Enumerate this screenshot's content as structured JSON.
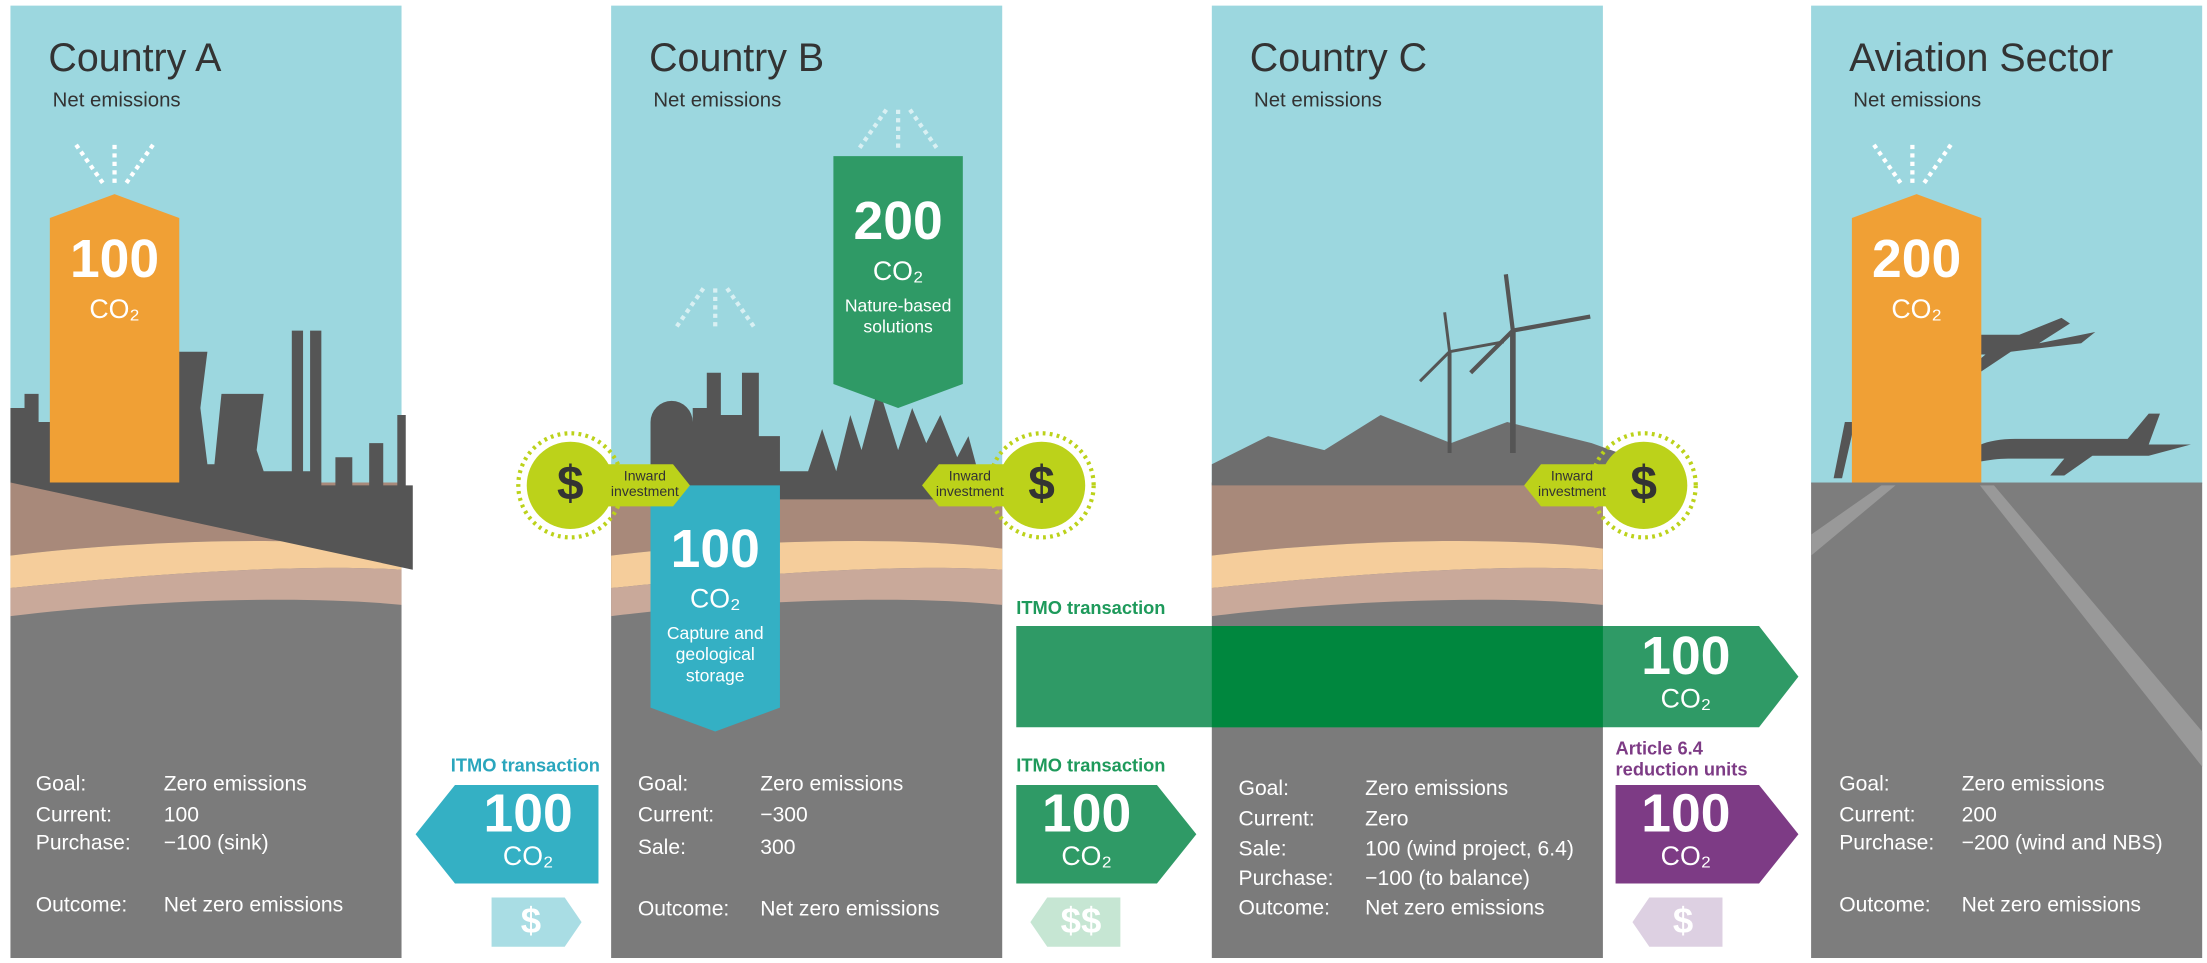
{
  "panels": [
    {
      "title": "Country A",
      "subtitle": "Net emissions",
      "details": [
        {
          "label": "Goal:",
          "value": "Zero emissions"
        },
        {
          "label": "Current:",
          "value": "100"
        },
        {
          "label": "Purchase:",
          "value": "−100 (sink)"
        },
        {
          "label": "Outcome:",
          "value": "Net zero emissions"
        }
      ]
    },
    {
      "title": "Country B",
      "subtitle": "Net emissions",
      "details": [
        {
          "label": "Goal:",
          "value": "Zero emissions"
        },
        {
          "label": "Current:",
          "value": "−300"
        },
        {
          "label": "Sale:",
          "value": "300"
        },
        {
          "label": "Outcome:",
          "value": "Net zero emissions"
        }
      ]
    },
    {
      "title": "Country C",
      "subtitle": "Net emissions",
      "details": [
        {
          "label": "Goal:",
          "value": "Zero emissions"
        },
        {
          "label": "Current:",
          "value": "Zero"
        },
        {
          "label": "Sale:",
          "value": "100 (wind project, 6.4)"
        },
        {
          "label": "Purchase:",
          "value": "−100 (to balance)"
        },
        {
          "label": "Outcome:",
          "value": "Net zero emissions"
        }
      ]
    },
    {
      "title": "Aviation Sector",
      "subtitle": "Net emissions",
      "details": [
        {
          "label": "Goal:",
          "value": "Zero emissions"
        },
        {
          "label": "Current:",
          "value": "200"
        },
        {
          "label": "Purchase:",
          "value": "−200 (wind and NBS)"
        },
        {
          "label": "Outcome:",
          "value": "Net zero emissions"
        }
      ]
    }
  ],
  "emission_blocks": [
    {
      "value": "100",
      "unit": "CO₂"
    },
    {
      "value": "200",
      "unit": "CO₂",
      "caption": [
        "Nature-based",
        "solutions"
      ]
    },
    {
      "value": "100",
      "unit": "CO₂",
      "caption": [
        "Capture and",
        "geological",
        "storage"
      ]
    },
    {
      "value": "200",
      "unit": "CO₂"
    }
  ],
  "investments": [
    {
      "symbol": "$",
      "caption": [
        "Inward",
        "investment"
      ]
    },
    {
      "symbol": "$",
      "caption": [
        "Inward",
        "investment"
      ]
    },
    {
      "symbol": "$",
      "caption": [
        "Inward",
        "investment"
      ]
    }
  ],
  "transactions": [
    {
      "label": [
        "ITMO transaction"
      ],
      "value": "100",
      "unit": "CO₂",
      "payment": "$"
    },
    {
      "label": [
        "ITMO transaction"
      ],
      "value": "100",
      "unit": "CO₂"
    },
    {
      "label": [
        "ITMO transaction"
      ],
      "value": "100",
      "unit": "CO₂",
      "payment": "$$"
    },
    {
      "label": [
        "Article 6.4",
        "reduction units"
      ],
      "value": "100",
      "unit": "CO₂",
      "payment": "$"
    }
  ]
}
